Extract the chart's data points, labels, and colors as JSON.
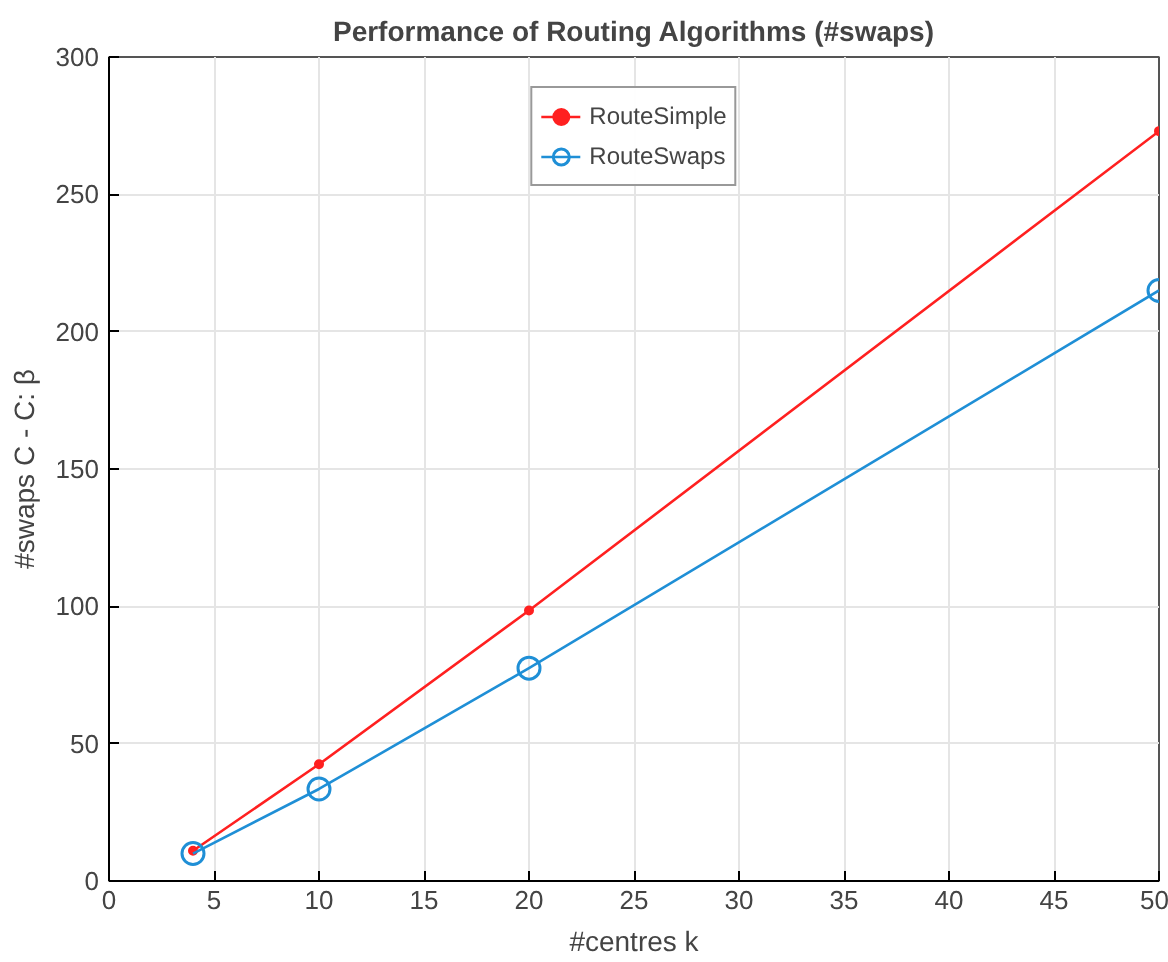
{
  "chart_data": {
    "type": "line",
    "title": "Performance of Routing Algorithms (#swaps)",
    "xlabel": "#centres k",
    "ylabel": "#swaps C - C: β",
    "x": [
      4,
      10,
      20,
      50
    ],
    "series": [
      {
        "name": "RouteSimple",
        "color": "#ff2020",
        "values": [
          11,
          42.5,
          98.5,
          273
        ],
        "marker": "point"
      },
      {
        "name": "RouteSwaps",
        "color": "#1f8fd6",
        "values": [
          10,
          33.5,
          77.5,
          215
        ],
        "marker": "circle"
      }
    ],
    "xlim": [
      0,
      50
    ],
    "ylim": [
      0,
      300
    ],
    "xticks": [
      0,
      5,
      10,
      15,
      20,
      25,
      30,
      35,
      40,
      45,
      50
    ],
    "yticks": [
      0,
      50,
      100,
      150,
      200,
      250,
      300
    ],
    "grid": true,
    "legend": "top",
    "line_style": "solid"
  }
}
